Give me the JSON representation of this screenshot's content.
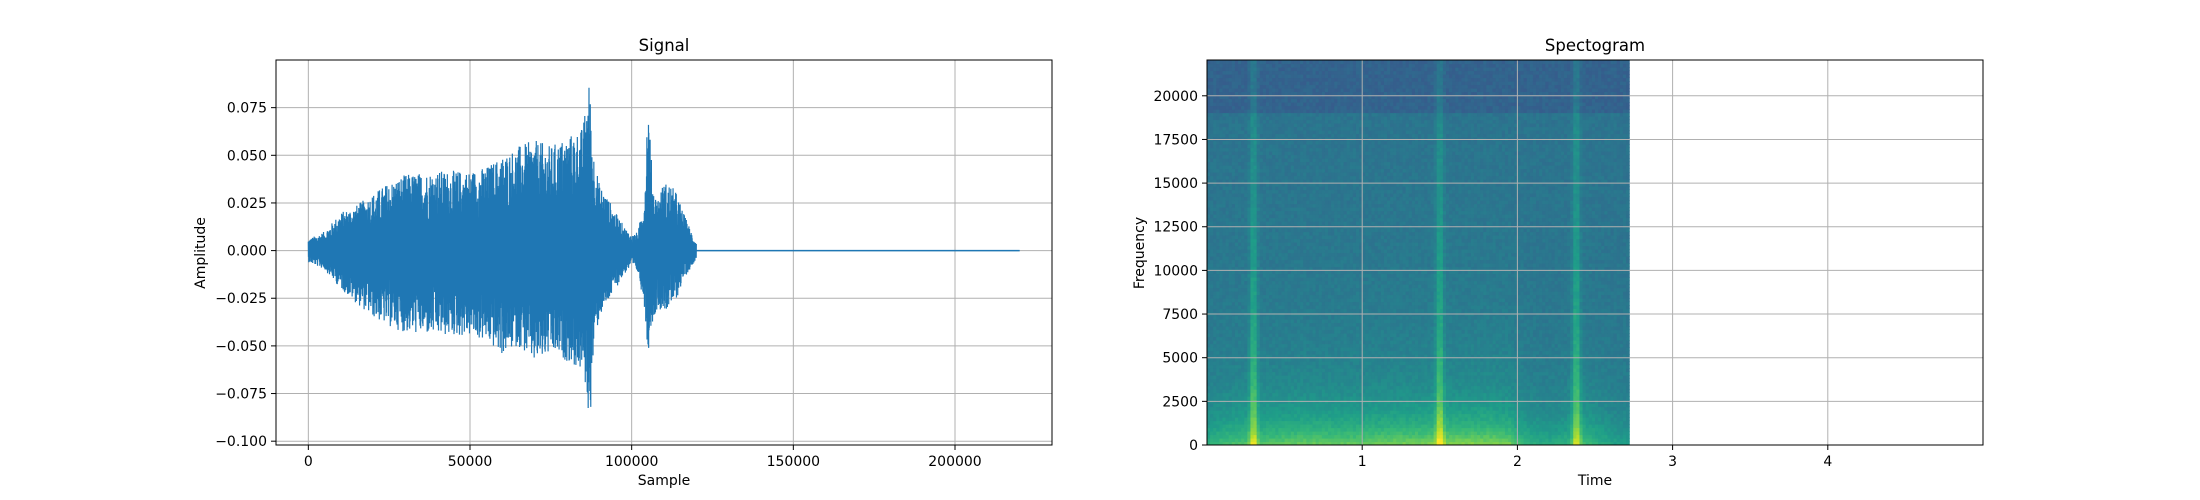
{
  "chart_data": [
    {
      "type": "line",
      "title": "Signal",
      "xlabel": "Sample",
      "ylabel": "Amplitude",
      "xlim": [
        -10000,
        230000
      ],
      "ylim": [
        -0.102,
        0.1
      ],
      "xticks": [
        0,
        50000,
        100000,
        150000,
        200000
      ],
      "xtick_labels": [
        "0",
        "50000",
        "100000",
        "150000",
        "200000"
      ],
      "yticks": [
        -0.1,
        -0.075,
        -0.05,
        -0.025,
        0.0,
        0.025,
        0.05,
        0.075
      ],
      "ytick_labels": [
        "−0.100",
        "−0.075",
        "−0.050",
        "−0.025",
        "0.000",
        "0.025",
        "0.050",
        "0.075"
      ],
      "grid": true,
      "color": "#1f77b4",
      "series": [
        {
          "envelope": {
            "x": [
              0,
              5000,
              10000,
              15000,
              20000,
              25000,
              30000,
              40000,
              50000,
              55000,
              60000,
              65000,
              70000,
              75000,
              80000,
              85000,
              86000,
              87000,
              88000,
              89000,
              90000,
              92000,
              95000,
              98000,
              100000,
              102000,
              104000,
              105000,
              106000,
              107000,
              108000,
              110000,
              112000,
              114000,
              116000,
              118000,
              120000
            ],
            "upper": [
              0.006,
              0.01,
              0.02,
              0.024,
              0.03,
              0.036,
              0.04,
              0.042,
              0.042,
              0.044,
              0.05,
              0.055,
              0.058,
              0.055,
              0.06,
              0.065,
              0.082,
              0.09,
              0.055,
              0.045,
              0.035,
              0.03,
              0.02,
              0.012,
              0.008,
              0.01,
              0.03,
              0.085,
              0.05,
              0.03,
              0.028,
              0.036,
              0.035,
              0.03,
              0.02,
              0.012,
              0.004
            ],
            "lower": [
              -0.006,
              -0.01,
              -0.02,
              -0.028,
              -0.035,
              -0.04,
              -0.043,
              -0.045,
              -0.045,
              -0.048,
              -0.055,
              -0.05,
              -0.06,
              -0.055,
              -0.058,
              -0.065,
              -0.075,
              -0.095,
              -0.06,
              -0.045,
              -0.035,
              -0.03,
              -0.02,
              -0.012,
              -0.008,
              -0.012,
              -0.03,
              -0.055,
              -0.04,
              -0.035,
              -0.03,
              -0.032,
              -0.03,
              -0.025,
              -0.015,
              -0.01,
              -0.004
            ]
          },
          "tail": {
            "x": [
              120000,
              220000
            ],
            "y": [
              0.0,
              0.0
            ]
          }
        }
      ]
    },
    {
      "type": "heatmap",
      "title": "Spectogram",
      "xlabel": "Time",
      "ylabel": "Frequency",
      "xlim": [
        0,
        5.0
      ],
      "ylim": [
        0,
        22050
      ],
      "xticks": [
        1,
        2,
        3,
        4
      ],
      "xtick_labels": [
        "1",
        "2",
        "3",
        "4"
      ],
      "yticks": [
        0,
        2500,
        5000,
        7500,
        10000,
        12500,
        15000,
        17500,
        20000
      ],
      "ytick_labels": [
        "0",
        "2500",
        "5000",
        "7500",
        "10000",
        "12500",
        "15000",
        "17500",
        "20000"
      ],
      "grid": true,
      "colormap": "viridis",
      "data_extent_time": [
        0,
        2.72
      ],
      "transient_times": [
        0.3,
        1.5,
        2.38
      ],
      "activity": {
        "t": [
          0.0,
          0.1,
          0.2,
          0.4,
          0.6,
          0.8,
          1.0,
          1.2,
          1.4,
          1.6,
          1.8,
          1.95,
          2.0,
          2.1,
          2.2,
          2.3,
          2.4,
          2.5,
          2.6,
          2.72
        ],
        "level": [
          0.55,
          0.7,
          0.75,
          0.8,
          0.85,
          0.85,
          0.85,
          0.9,
          0.92,
          0.95,
          0.95,
          0.9,
          0.7,
          0.55,
          0.5,
          0.55,
          0.75,
          0.6,
          0.45,
          0.4
        ]
      }
    }
  ]
}
